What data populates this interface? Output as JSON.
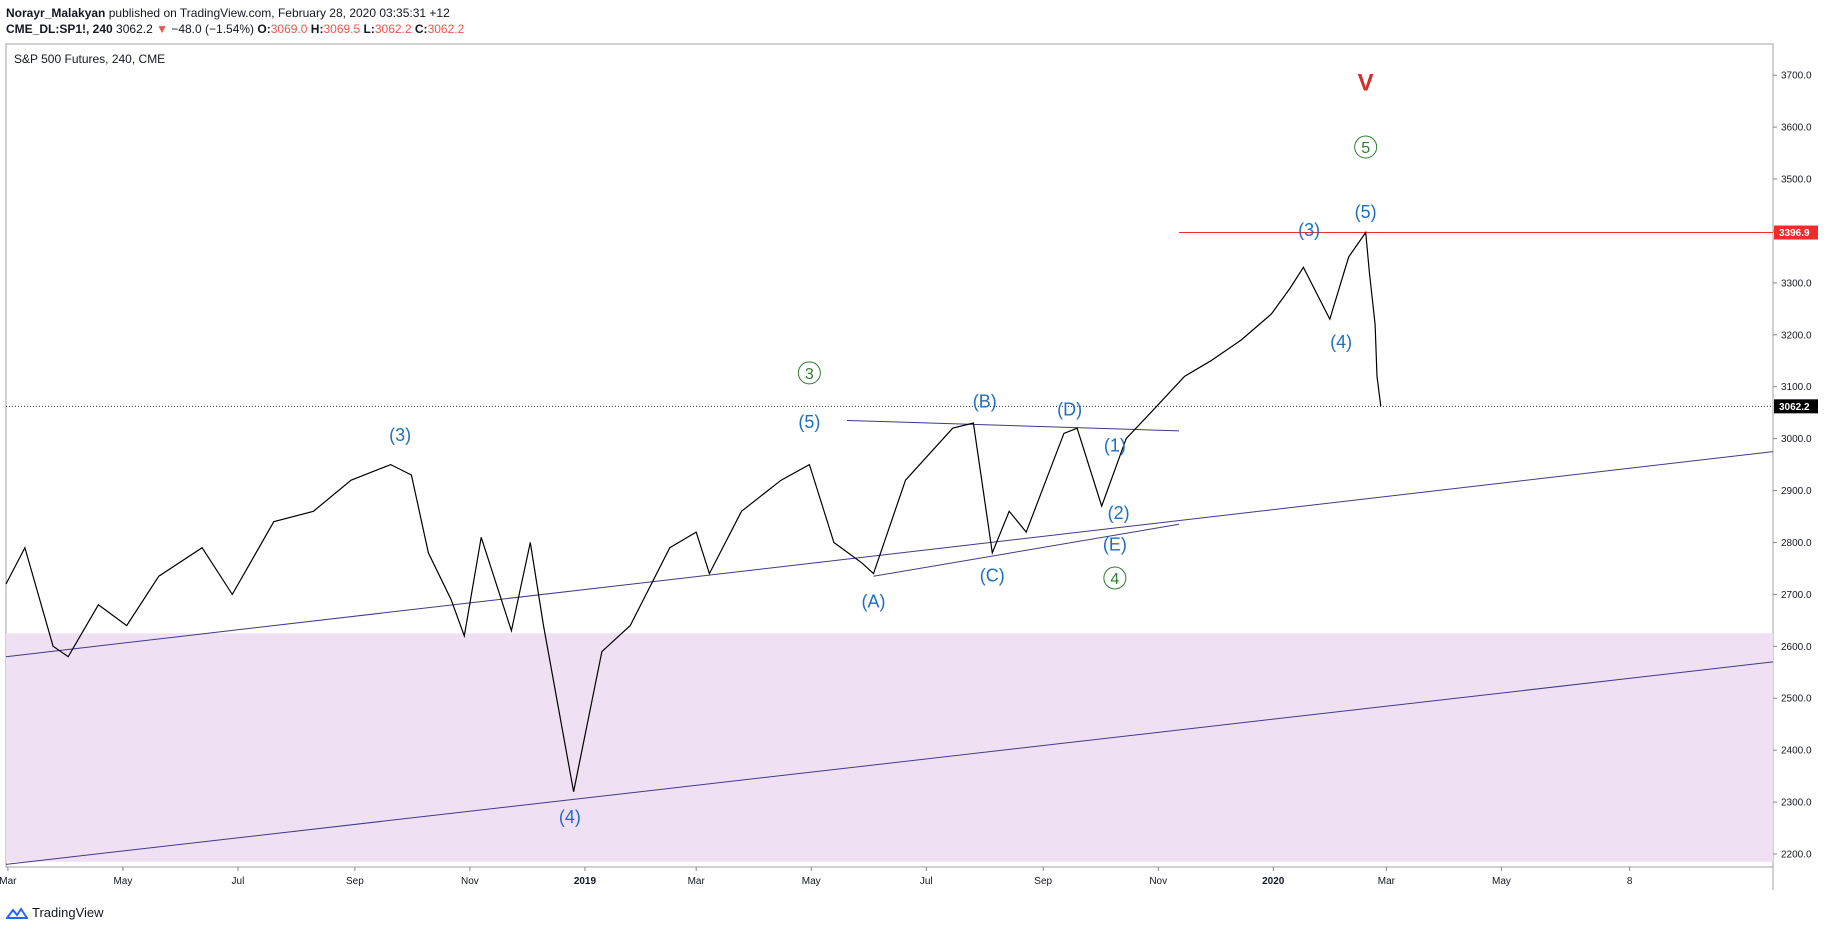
{
  "header": {
    "author": "Norayr_Malakyan",
    "published": "published on TradingView.com, February 28, 2020 03:35:31 +12",
    "symbol": "CME_DL:SP1!, 240",
    "last": "3062.2",
    "change_arrow": "▼",
    "change": "−48.0 (−1.54%)",
    "o_label": "O:",
    "o_value": "3069.0",
    "h_label": "H:",
    "h_value": "3069.5",
    "l_label": "L:",
    "l_value": "3062.2",
    "c_label": "C:",
    "c_value": "3062.2"
  },
  "footer": {
    "brand": "TradingView"
  },
  "colors": {
    "price": "#000000",
    "trendline": "#3f3a86",
    "zone": "#f0e0f4",
    "resistance": "#ef2b2b",
    "wave_blue": "#1e6fc0",
    "wave_green": "#2e7d32",
    "wave_red": "#d32f2f"
  },
  "chart_data": {
    "type": "line",
    "title": "S&P 500 Futures, 240, CME",
    "ylim": [
      2175,
      3760
    ],
    "y_ticks": [
      2200,
      2300,
      2400,
      2500,
      2600,
      2700,
      2800,
      2900,
      3000,
      3100,
      3200,
      3300,
      3400,
      3500,
      3600,
      3700
    ],
    "x_ticks": [
      "Mar",
      "May",
      "Jul",
      "Sep",
      "Nov",
      "2019",
      "Mar",
      "May",
      "Jul",
      "Sep",
      "Nov",
      "2020",
      "Mar",
      "May",
      "8"
    ],
    "x_tick_values": [
      "2018-03-01",
      "2018-05-01",
      "2018-07-01",
      "2018-09-01",
      "2018-11-01",
      "2019-01-01",
      "2019-03-01",
      "2019-05-01",
      "2019-07-01",
      "2019-09-01",
      "2019-11-01",
      "2020-01-01",
      "2020-03-01",
      "2020-05-01",
      "2020-07-08"
    ],
    "x_range": [
      "2018-02-28",
      "2020-09-22"
    ],
    "series": [
      {
        "x": [
          "2018-02-28",
          "2018-03-10",
          "2018-03-25",
          "2018-04-02",
          "2018-04-18",
          "2018-05-03",
          "2018-05-20",
          "2018-06-12",
          "2018-06-28",
          "2018-07-20",
          "2018-08-10",
          "2018-08-30",
          "2018-09-20",
          "2018-10-01",
          "2018-10-10",
          "2018-10-22",
          "2018-10-29",
          "2018-11-07",
          "2018-11-23",
          "2018-12-03",
          "2018-12-10",
          "2018-12-26",
          "2019-01-10",
          "2019-01-25",
          "2019-02-15",
          "2019-03-01",
          "2019-03-08",
          "2019-03-25",
          "2019-04-15",
          "2019-04-30",
          "2019-05-13",
          "2019-05-28",
          "2019-06-03",
          "2019-06-20",
          "2019-07-15",
          "2019-07-26",
          "2019-08-05",
          "2019-08-14",
          "2019-08-23",
          "2019-09-12",
          "2019-09-19",
          "2019-10-02",
          "2019-10-15",
          "2019-10-28",
          "2019-11-15",
          "2019-11-29",
          "2019-12-15",
          "2019-12-31",
          "2020-01-10",
          "2020-01-17",
          "2020-01-31",
          "2020-02-10",
          "2020-02-19",
          "2020-02-21",
          "2020-02-24",
          "2020-02-25",
          "2020-02-27"
        ],
        "y": [
          2720,
          2790,
          2600,
          2580,
          2680,
          2640,
          2735,
          2790,
          2700,
          2840,
          2860,
          2920,
          2950,
          2930,
          2780,
          2690,
          2620,
          2810,
          2630,
          2800,
          2640,
          2320,
          2590,
          2640,
          2790,
          2820,
          2740,
          2860,
          2920,
          2950,
          2800,
          2760,
          2740,
          2920,
          3020,
          3030,
          2780,
          2860,
          2820,
          3010,
          3020,
          2870,
          3000,
          3050,
          3120,
          3150,
          3190,
          3240,
          3290,
          3330,
          3230,
          3350,
          3396.9,
          3320,
          3220,
          3120,
          3062.2
        ]
      }
    ],
    "last_price": "3062.2",
    "resistance_label": "3396.9",
    "trendlines": [
      {
        "from": [
          "2018-02-28",
          2580
        ],
        "to": [
          "2020-09-22",
          2975
        ]
      },
      {
        "from": [
          "2018-02-28",
          2180
        ],
        "to": [
          "2020-09-22",
          2570
        ]
      },
      {
        "from": [
          "2019-06-03",
          2735
        ],
        "to": [
          "2019-11-12",
          2835
        ]
      },
      {
        "from": [
          "2019-05-20",
          3035
        ],
        "to": [
          "2019-11-12",
          3015
        ]
      }
    ],
    "zone": {
      "from": 2185,
      "to": 2625
    },
    "resistance": {
      "from": "2019-11-12",
      "value": 3396.9
    },
    "wave_labels": [
      {
        "text": "(3)",
        "x": "2018-09-25",
        "y": 2995,
        "color": "blue"
      },
      {
        "text": "(4)",
        "x": "2018-12-24",
        "y": 2260,
        "color": "blue"
      },
      {
        "text": "(5)",
        "x": "2019-04-30",
        "y": 3020,
        "color": "blue"
      },
      {
        "text": "3",
        "x": "2019-04-30",
        "y": 3115,
        "color": "green",
        "circled": true
      },
      {
        "text": "(A)",
        "x": "2019-06-03",
        "y": 2675,
        "color": "blue"
      },
      {
        "text": "(B)",
        "x": "2019-08-01",
        "y": 3060,
        "color": "blue"
      },
      {
        "text": "(C)",
        "x": "2019-08-05",
        "y": 2725,
        "color": "blue"
      },
      {
        "text": "(D)",
        "x": "2019-09-15",
        "y": 3045,
        "color": "blue"
      },
      {
        "text": "(1)",
        "x": "2019-10-09",
        "y": 2975,
        "color": "blue"
      },
      {
        "text": "(2)",
        "x": "2019-10-11",
        "y": 2845,
        "color": "blue"
      },
      {
        "text": "(E)",
        "x": "2019-10-09",
        "y": 2785,
        "color": "blue"
      },
      {
        "text": "4",
        "x": "2019-10-09",
        "y": 2720,
        "color": "green",
        "circled": true
      },
      {
        "text": "(3)",
        "x": "2020-01-20",
        "y": 3390,
        "color": "blue"
      },
      {
        "text": "(4)",
        "x": "2020-02-06",
        "y": 3175,
        "color": "blue"
      },
      {
        "text": "(5)",
        "x": "2020-02-19",
        "y": 3425,
        "color": "blue"
      },
      {
        "text": "5",
        "x": "2020-02-19",
        "y": 3550,
        "color": "green",
        "circled": true
      },
      {
        "text": "V",
        "x": "2020-02-19",
        "y": 3670,
        "color": "red"
      }
    ]
  }
}
